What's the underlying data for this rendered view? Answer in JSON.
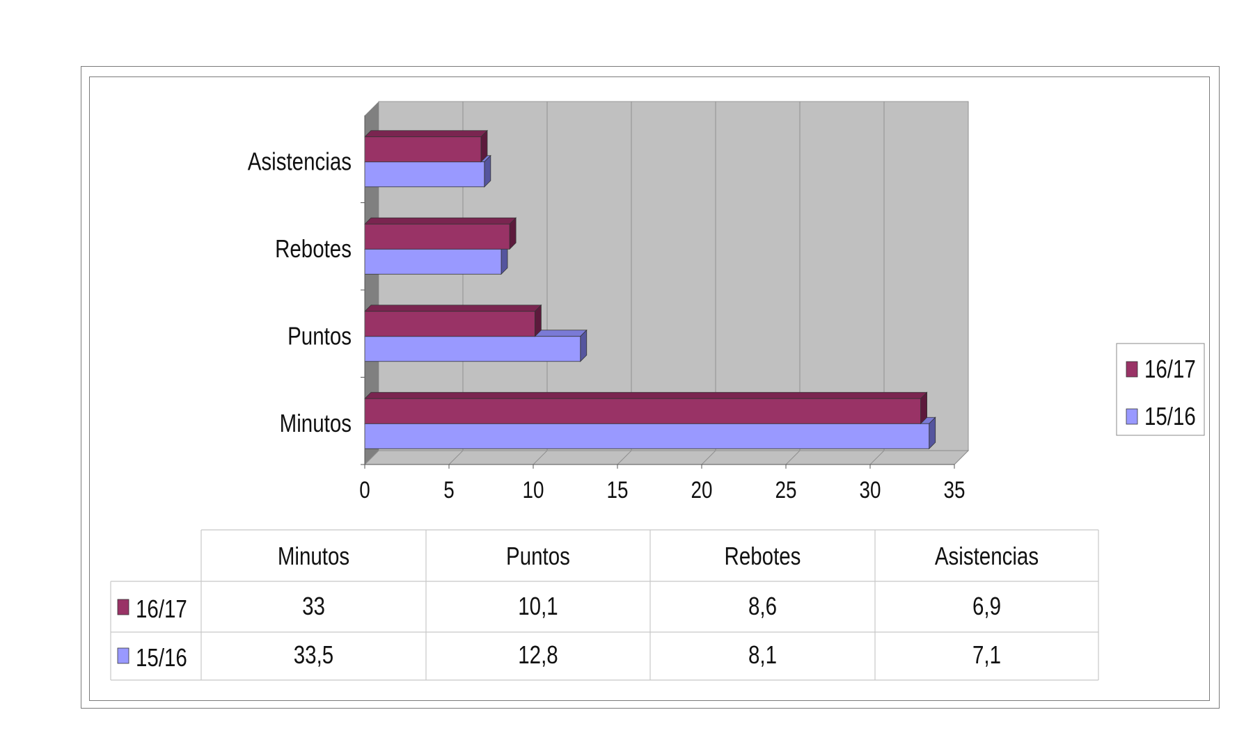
{
  "chart_data": {
    "type": "bar",
    "orientation": "horizontal",
    "three_d": true,
    "categories": [
      "Minutos",
      "Puntos",
      "Rebotes",
      "Asistencias"
    ],
    "series": [
      {
        "name": "16/17",
        "values": [
          33,
          10.1,
          8.6,
          6.9
        ],
        "color": "#993366",
        "top_color": "#7a2550",
        "side_color": "#5c1a3c"
      },
      {
        "name": "15/16",
        "values": [
          33.5,
          12.8,
          8.1,
          7.1
        ],
        "color": "#9999ff",
        "top_color": "#7a7ad6",
        "side_color": "#55559e"
      }
    ],
    "xlim": [
      0,
      35
    ],
    "x_ticks": [
      "0",
      "5",
      "10",
      "15",
      "20",
      "25",
      "30",
      "35"
    ],
    "gridlines": true,
    "plot_background": "#c0c0c0",
    "wall_color": "#808080",
    "legend_position": "right",
    "data_table": {
      "headers": [
        "Minutos",
        "Puntos",
        "Rebotes",
        "Asistencias"
      ],
      "rows": [
        {
          "series": "16/17",
          "values": [
            "33",
            "10,1",
            "8,6",
            "6,9"
          ]
        },
        {
          "series": "15/16",
          "values": [
            "33,5",
            "12,8",
            "8,1",
            "7,1"
          ]
        }
      ]
    }
  }
}
